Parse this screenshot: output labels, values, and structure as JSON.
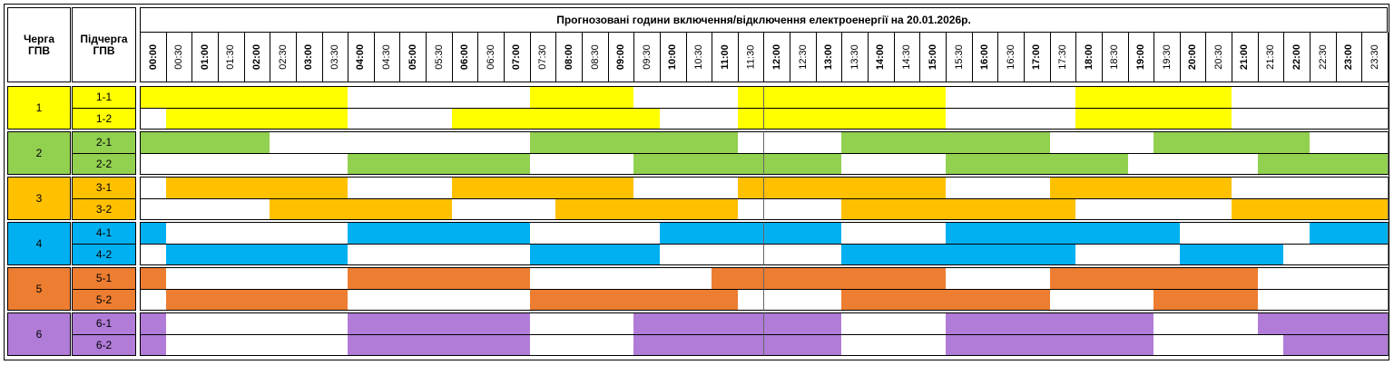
{
  "header": {
    "title": "Прогнозовані години включення/відключення електроенергії на 20.01.2026р.",
    "queue_label": "Черга ГПВ",
    "subqueue_label": "Підчерга ГПВ",
    "times": [
      "00:00",
      "00:30",
      "01:00",
      "01:30",
      "02:00",
      "02:30",
      "03:00",
      "03:30",
      "04:00",
      "04:30",
      "05:00",
      "05:30",
      "06:00",
      "06:30",
      "07:00",
      "07:30",
      "08:00",
      "08:30",
      "09:00",
      "09:30",
      "10:00",
      "10:30",
      "11:00",
      "11:30",
      "12:00",
      "12:30",
      "13:00",
      "13:30",
      "14:00",
      "14:30",
      "15:00",
      "15:30",
      "16:00",
      "16:30",
      "17:00",
      "17:30",
      "18:00",
      "18:30",
      "19:00",
      "19:30",
      "20:00",
      "20:30",
      "21:00",
      "21:30",
      "22:00",
      "22:30",
      "23:00",
      "23:30"
    ]
  },
  "groups": [
    {
      "label": "1",
      "color": "#ffff00",
      "subqueues": [
        {
          "label": "1-1",
          "slots": [
            1,
            1,
            1,
            1,
            1,
            1,
            1,
            1,
            0,
            0,
            0,
            0,
            0,
            0,
            0,
            1,
            1,
            1,
            1,
            0,
            0,
            0,
            0,
            1,
            1,
            1,
            1,
            1,
            1,
            1,
            1,
            0,
            0,
            0,
            0,
            0,
            1,
            1,
            1,
            1,
            1,
            1,
            0,
            0,
            0,
            0,
            0,
            0
          ]
        },
        {
          "label": "1-2",
          "slots": [
            0,
            1,
            1,
            1,
            1,
            1,
            1,
            1,
            0,
            0,
            0,
            0,
            1,
            1,
            1,
            1,
            1,
            1,
            1,
            1,
            0,
            0,
            0,
            1,
            1,
            1,
            1,
            1,
            1,
            1,
            1,
            0,
            0,
            0,
            0,
            0,
            1,
            1,
            1,
            1,
            1,
            1,
            0,
            0,
            0,
            0,
            0,
            0
          ]
        }
      ]
    },
    {
      "label": "2",
      "color": "#92d050",
      "subqueues": [
        {
          "label": "2-1",
          "slots": [
            1,
            1,
            1,
            1,
            1,
            0,
            0,
            0,
            0,
            0,
            0,
            0,
            0,
            0,
            0,
            1,
            1,
            1,
            1,
            1,
            1,
            1,
            1,
            0,
            0,
            0,
            0,
            1,
            1,
            1,
            1,
            1,
            1,
            1,
            1,
            0,
            0,
            0,
            0,
            1,
            1,
            1,
            1,
            1,
            1,
            0,
            0,
            0
          ]
        },
        {
          "label": "2-2",
          "slots": [
            0,
            0,
            0,
            0,
            0,
            0,
            0,
            0,
            1,
            1,
            1,
            1,
            1,
            1,
            1,
            0,
            0,
            0,
            0,
            1,
            1,
            1,
            1,
            1,
            1,
            1,
            1,
            0,
            0,
            0,
            0,
            1,
            1,
            1,
            1,
            1,
            1,
            1,
            0,
            0,
            0,
            0,
            0,
            1,
            1,
            1,
            1,
            1
          ]
        }
      ]
    },
    {
      "label": "3",
      "color": "#ffc000",
      "subqueues": [
        {
          "label": "3-1",
          "slots": [
            0,
            1,
            1,
            1,
            1,
            1,
            1,
            1,
            0,
            0,
            0,
            0,
            1,
            1,
            1,
            1,
            1,
            1,
            1,
            0,
            0,
            0,
            0,
            1,
            1,
            1,
            1,
            1,
            1,
            1,
            1,
            0,
            0,
            0,
            0,
            1,
            1,
            1,
            1,
            1,
            1,
            1,
            0,
            0,
            0,
            0,
            0,
            0
          ]
        },
        {
          "label": "3-2",
          "slots": [
            0,
            0,
            0,
            0,
            0,
            1,
            1,
            1,
            1,
            1,
            1,
            1,
            0,
            0,
            0,
            0,
            1,
            1,
            1,
            1,
            1,
            1,
            1,
            0,
            0,
            0,
            0,
            1,
            1,
            1,
            1,
            1,
            1,
            1,
            1,
            1,
            0,
            0,
            0,
            0,
            0,
            0,
            1,
            1,
            1,
            1,
            1,
            1
          ]
        }
      ]
    },
    {
      "label": "4",
      "color": "#00b0f0",
      "subqueues": [
        {
          "label": "4-1",
          "slots": [
            1,
            0,
            0,
            0,
            0,
            0,
            0,
            0,
            1,
            1,
            1,
            1,
            1,
            1,
            1,
            0,
            0,
            0,
            0,
            0,
            1,
            1,
            1,
            1,
            1,
            1,
            1,
            0,
            0,
            0,
            0,
            1,
            1,
            1,
            1,
            1,
            1,
            1,
            1,
            1,
            0,
            0,
            0,
            0,
            0,
            1,
            1,
            1
          ]
        },
        {
          "label": "4-2",
          "slots": [
            0,
            1,
            1,
            1,
            1,
            1,
            1,
            1,
            0,
            0,
            0,
            0,
            0,
            0,
            0,
            1,
            1,
            1,
            1,
            1,
            0,
            0,
            0,
            0,
            0,
            0,
            0,
            1,
            1,
            1,
            1,
            1,
            1,
            1,
            1,
            1,
            0,
            0,
            0,
            0,
            1,
            1,
            1,
            1,
            0,
            0,
            0,
            0
          ]
        }
      ]
    },
    {
      "label": "5",
      "color": "#ed7d31",
      "subqueues": [
        {
          "label": "5-1",
          "slots": [
            1,
            0,
            0,
            0,
            0,
            0,
            0,
            0,
            1,
            1,
            1,
            1,
            1,
            1,
            1,
            0,
            0,
            0,
            0,
            0,
            0,
            0,
            1,
            1,
            1,
            1,
            1,
            1,
            1,
            1,
            1,
            0,
            0,
            0,
            0,
            1,
            1,
            1,
            1,
            1,
            1,
            1,
            1,
            0,
            0,
            0,
            0,
            0
          ]
        },
        {
          "label": "5-2",
          "slots": [
            0,
            1,
            1,
            1,
            1,
            1,
            1,
            1,
            0,
            0,
            0,
            0,
            0,
            0,
            0,
            1,
            1,
            1,
            1,
            1,
            1,
            1,
            1,
            0,
            0,
            0,
            0,
            1,
            1,
            1,
            1,
            1,
            1,
            1,
            1,
            0,
            0,
            0,
            0,
            1,
            1,
            1,
            1,
            0,
            0,
            0,
            0,
            0
          ]
        }
      ]
    },
    {
      "label": "6",
      "color": "#b07cd8",
      "subqueues": [
        {
          "label": "6-1",
          "slots": [
            1,
            0,
            0,
            0,
            0,
            0,
            0,
            0,
            1,
            1,
            1,
            1,
            1,
            1,
            1,
            0,
            0,
            0,
            0,
            1,
            1,
            1,
            1,
            1,
            1,
            1,
            1,
            0,
            0,
            0,
            0,
            1,
            1,
            1,
            1,
            1,
            1,
            1,
            1,
            0,
            0,
            0,
            0,
            1,
            1,
            1,
            1,
            1
          ]
        },
        {
          "label": "6-2",
          "slots": [
            1,
            0,
            0,
            0,
            0,
            0,
            0,
            0,
            1,
            1,
            1,
            1,
            1,
            1,
            1,
            0,
            0,
            0,
            0,
            1,
            1,
            1,
            1,
            1,
            1,
            1,
            1,
            0,
            0,
            0,
            0,
            1,
            1,
            1,
            1,
            1,
            1,
            1,
            1,
            0,
            0,
            0,
            0,
            0,
            1,
            1,
            1,
            1
          ]
        }
      ]
    }
  ]
}
